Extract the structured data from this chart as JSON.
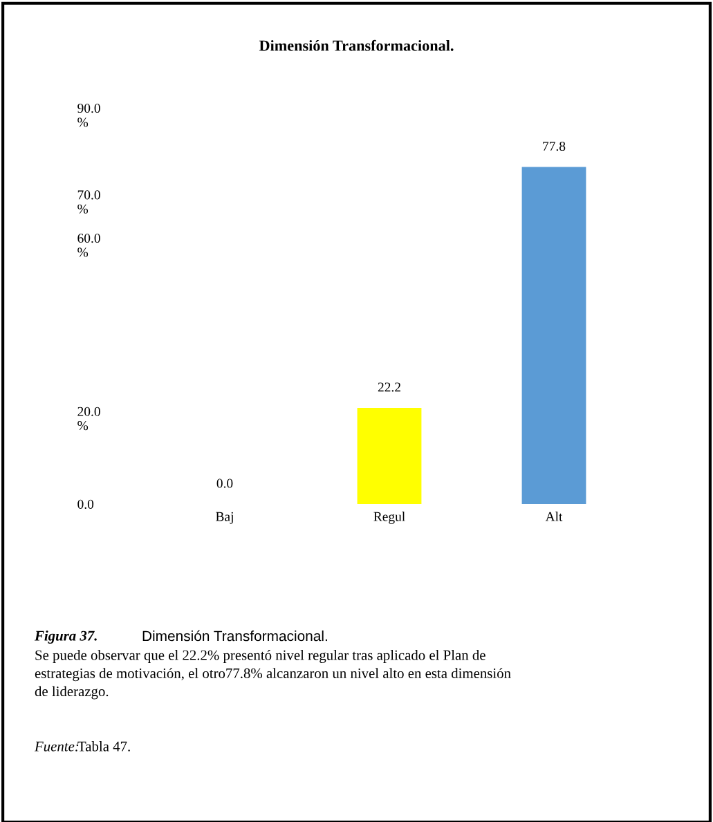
{
  "chart_data": {
    "type": "bar",
    "title": "Dimensión Transformacional.",
    "categories": [
      "Baj",
      "Regul",
      "Alt"
    ],
    "values": [
      0.0,
      22.2,
      77.8
    ],
    "colors": [
      "#5b9bd5",
      "#ffff00",
      "#5b9bd5"
    ],
    "value_labels": [
      "0.0",
      "22.2",
      "77.8"
    ],
    "ylim": [
      0,
      90
    ],
    "yticks": [
      {
        "value": 0,
        "label": "0.0"
      },
      {
        "value": 20,
        "label": "20.0\n%"
      },
      {
        "value": 60,
        "label": "60.0\n%"
      },
      {
        "value": 70,
        "label": "70.0\n%"
      },
      {
        "value": 90,
        "label": "90.0\n%"
      }
    ],
    "grid": false,
    "legend": false,
    "annotations": [
      "Figura 37.",
      "Dimensión Transformacional.",
      "Se puede observar que el 22.2% presentó nivel regular tras aplicado el Plan de\nestrategias de motivación, el otro77.8% alcanzaron un nivel alto en esta dimensión\nde liderazgo.",
      "Fuente:",
      "Tabla 47."
    ]
  }
}
